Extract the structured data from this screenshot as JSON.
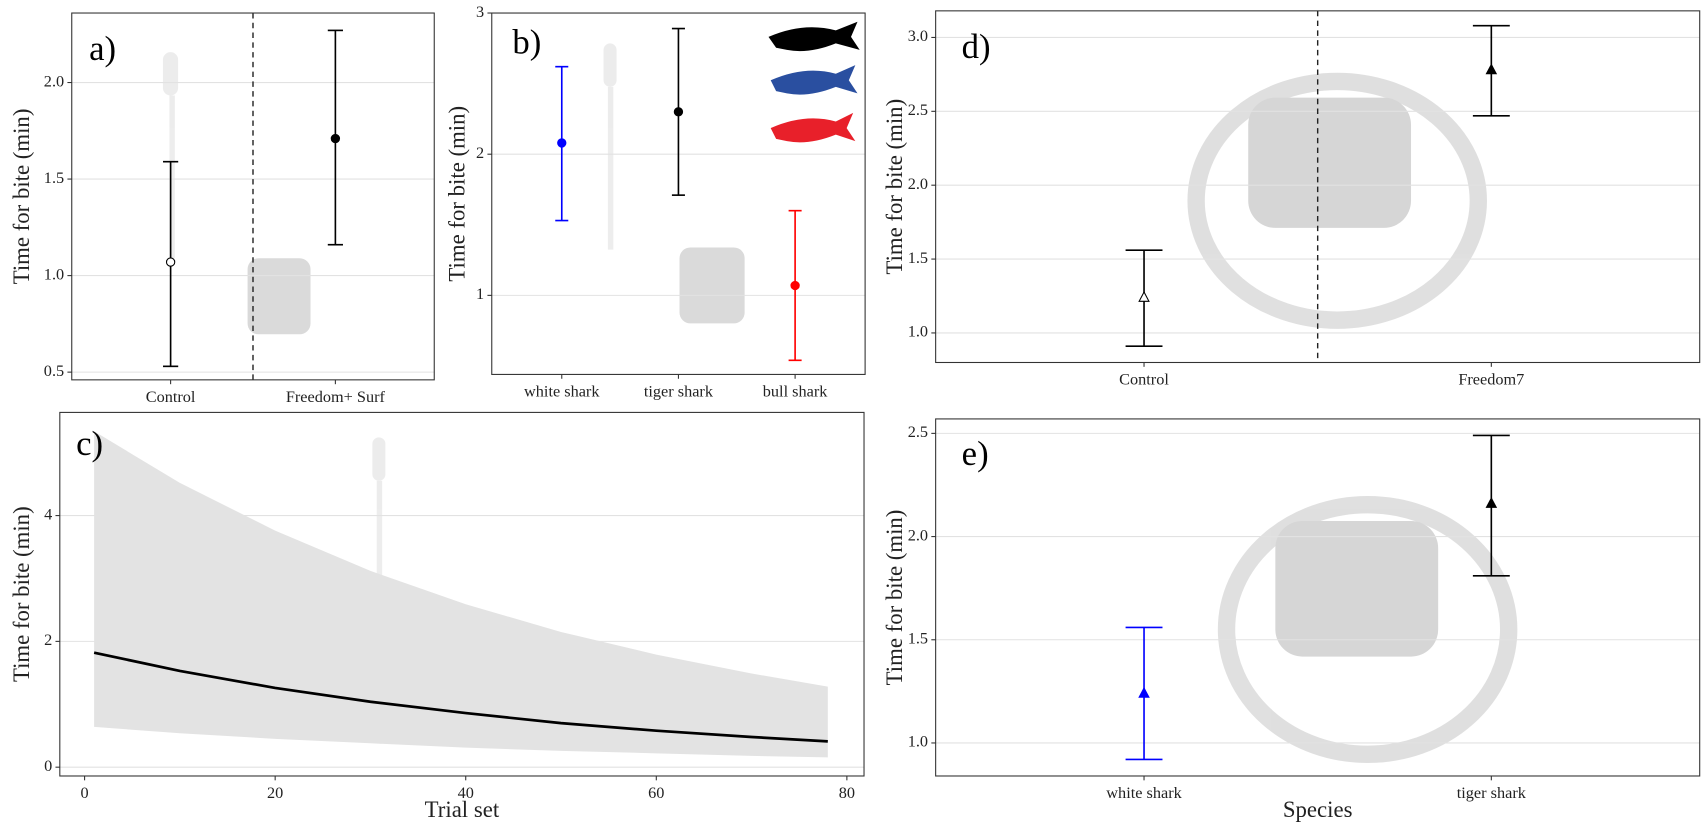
{
  "chart_data": [
    {
      "type": "errorbar",
      "label": "a)",
      "y_label": "Time for bite (min)",
      "categories": [
        "Control",
        "Freedom+ Surf"
      ],
      "values": [
        1.07,
        1.71
      ],
      "lower": [
        0.53,
        1.16
      ],
      "upper": [
        1.59,
        2.27
      ],
      "colors": [
        "#000000",
        "#000000"
      ],
      "markers": [
        "open-circle",
        "circle"
      ],
      "divider": true,
      "ylim": [
        0.46,
        2.36
      ],
      "yticks": [
        0.5,
        {
          "value": 1.0,
          "label": "1.0"
        },
        1.5,
        {
          "value": 2.0,
          "label": "2.0"
        }
      ],
      "grid": true
    },
    {
      "type": "errorbar",
      "label": "b)",
      "y_label": "Time for bite (min)",
      "categories": [
        "white shark",
        "tiger shark",
        "bull shark"
      ],
      "values": [
        2.08,
        2.3,
        1.07
      ],
      "lower": [
        1.53,
        1.71,
        0.54
      ],
      "upper": [
        2.62,
        2.89,
        1.6
      ],
      "colors": [
        "#0000ff",
        "#000000",
        "#ff0000"
      ],
      "markers": [
        "circle",
        "circle",
        "circle"
      ],
      "divider": false,
      "ylim": [
        0.44,
        3
      ],
      "yticks": [
        1,
        2,
        3
      ],
      "grid": true
    },
    {
      "type": "line",
      "label": "c)",
      "y_label": "Time for bite (min)",
      "x_label": "Trial set",
      "x": [
        1,
        10,
        20,
        30,
        40,
        50,
        60,
        70,
        78
      ],
      "values": [
        1.82,
        1.53,
        1.26,
        1.04,
        0.86,
        0.7,
        0.58,
        0.48,
        0.41
      ],
      "upper": [
        5.34,
        4.52,
        3.76,
        3.12,
        2.59,
        2.15,
        1.79,
        1.49,
        1.28
      ],
      "lower": [
        0.64,
        0.54,
        0.45,
        0.38,
        0.31,
        0.26,
        0.22,
        0.18,
        0.155
      ],
      "color": "#000000",
      "band_color": "#e3e3e3",
      "xlim": [
        -2.6,
        81.8
      ],
      "xticks": [
        0,
        20,
        40,
        60,
        80
      ],
      "ylim": [
        -0.14,
        5.64
      ],
      "yticks": [
        0,
        2,
        4
      ],
      "grid": true
    },
    {
      "type": "errorbar",
      "label": "d)",
      "y_label": "Time for bite (min)",
      "categories": [
        "Control",
        "Freedom7"
      ],
      "values": [
        1.24,
        2.78
      ],
      "lower": [
        0.91,
        2.47
      ],
      "upper": [
        1.56,
        3.08
      ],
      "colors": [
        "#000000",
        "#000000"
      ],
      "markers": [
        "open-triangle",
        "triangle"
      ],
      "divider": true,
      "ylim": [
        0.8,
        3.18
      ],
      "yticks": [
        {
          "value": 1.0,
          "label": "1.0"
        },
        1.5,
        {
          "value": 2.0,
          "label": "2.0"
        },
        2.5,
        {
          "value": 3.0,
          "label": "3.0"
        }
      ],
      "grid": true
    },
    {
      "type": "errorbar",
      "label": "e)",
      "y_label": "Time for bite (min)",
      "x_label": "Species",
      "categories": [
        "white shark",
        "tiger shark"
      ],
      "values": [
        1.24,
        2.16
      ],
      "lower": [
        0.92,
        1.81
      ],
      "upper": [
        1.56,
        2.49
      ],
      "colors": [
        "#0000ff",
        "#000000"
      ],
      "markers": [
        "triangle",
        "triangle"
      ],
      "divider": false,
      "ylim": [
        0.84,
        2.57
      ],
      "yticks": [
        {
          "value": 1.0,
          "label": "1.0"
        },
        1.5,
        {
          "value": 2.0,
          "label": "2.0"
        },
        2.5
      ],
      "grid": true
    }
  ]
}
